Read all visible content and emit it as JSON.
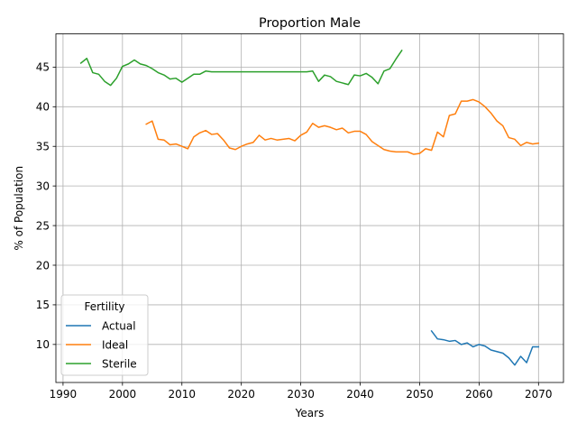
{
  "chart_data": {
    "type": "line",
    "title": "Proportion Male",
    "xlabel": "Years",
    "ylabel": "% of Population",
    "xlim": [
      1988.8,
      2074.2
    ],
    "ylim": [
      5.2,
      49.2
    ],
    "xticks": [
      1990,
      2000,
      2010,
      2020,
      2030,
      2040,
      2050,
      2060,
      2070
    ],
    "yticks": [
      10,
      15,
      20,
      25,
      30,
      35,
      40,
      45
    ],
    "grid": true,
    "legend": {
      "title": "Fertility",
      "placement": "lower-left",
      "entries": [
        "Actual",
        "Ideal",
        "Sterile"
      ]
    },
    "series": [
      {
        "name": "Actual",
        "color": "#1f77b4",
        "x": [
          2052,
          2053,
          2054,
          2055,
          2056,
          2057,
          2058,
          2059,
          2060,
          2061,
          2062,
          2063,
          2064,
          2065,
          2066,
          2067,
          2068,
          2069,
          2070
        ],
        "y": [
          11.7,
          10.7,
          10.6,
          10.4,
          10.5,
          10.0,
          10.2,
          9.7,
          10.0,
          9.8,
          9.3,
          9.1,
          8.9,
          8.3,
          7.4,
          8.5,
          7.7,
          9.7,
          9.7
        ]
      },
      {
        "name": "Ideal",
        "color": "#ff7f0e",
        "x": [
          2004,
          2005,
          2006,
          2007,
          2008,
          2009,
          2010,
          2011,
          2012,
          2013,
          2014,
          2015,
          2016,
          2017,
          2018,
          2019,
          2020,
          2021,
          2022,
          2023,
          2024,
          2025,
          2026,
          2027,
          2028,
          2029,
          2030,
          2031,
          2032,
          2033,
          2034,
          2035,
          2036,
          2037,
          2038,
          2039,
          2040,
          2041,
          2042,
          2043,
          2044,
          2045,
          2046,
          2047,
          2048,
          2049,
          2050,
          2051,
          2052,
          2053,
          2054,
          2055,
          2056,
          2057,
          2058,
          2059,
          2060,
          2061,
          2062,
          2063,
          2064,
          2065,
          2066,
          2067,
          2068,
          2069,
          2070
        ],
        "y": [
          37.8,
          38.2,
          35.9,
          35.8,
          35.2,
          35.3,
          35.0,
          34.7,
          36.2,
          36.7,
          37.0,
          36.5,
          36.6,
          35.8,
          34.8,
          34.6,
          35.0,
          35.3,
          35.5,
          36.4,
          35.8,
          36.0,
          35.8,
          35.9,
          36.0,
          35.7,
          36.4,
          36.8,
          37.9,
          37.4,
          37.6,
          37.4,
          37.1,
          37.3,
          36.7,
          36.9,
          36.9,
          36.5,
          35.6,
          35.1,
          34.6,
          34.4,
          34.3,
          34.3,
          34.3,
          34.0,
          34.1,
          34.7,
          34.5,
          36.8,
          36.2,
          38.9,
          39.1,
          40.7,
          40.7,
          40.9,
          40.6,
          40.0,
          39.2,
          38.2,
          37.6,
          36.1,
          35.9,
          35.1,
          35.5,
          35.3,
          35.4
        ]
      },
      {
        "name": "Sterile",
        "color": "#2ca02c",
        "x": [
          1993,
          1994,
          1995,
          1996,
          1997,
          1998,
          1999,
          2000,
          2001,
          2002,
          2003,
          2004,
          2005,
          2006,
          2007,
          2008,
          2009,
          2010,
          2011,
          2012,
          2013,
          2014,
          2015,
          2016,
          2017,
          2018,
          2019,
          2020,
          2021,
          2022,
          2023,
          2024,
          2025,
          2026,
          2027,
          2028,
          2029,
          2030,
          2031,
          2032,
          2033,
          2034,
          2035,
          2036,
          2037,
          2038,
          2039,
          2040,
          2041,
          2042,
          2043,
          2044,
          2045,
          2046,
          2047
        ],
        "y": [
          45.5,
          46.1,
          44.3,
          44.1,
          43.2,
          42.7,
          43.6,
          45.1,
          45.4,
          45.9,
          45.4,
          45.2,
          44.8,
          44.3,
          44.0,
          43.5,
          43.6,
          43.1,
          43.6,
          44.1,
          44.1,
          44.5,
          44.4,
          44.4,
          44.4,
          44.4,
          44.4,
          44.4,
          44.4,
          44.4,
          44.4,
          44.4,
          44.4,
          44.4,
          44.4,
          44.4,
          44.4,
          44.4,
          44.4,
          44.5,
          43.2,
          44.0,
          43.8,
          43.2,
          43.0,
          42.8,
          44.0,
          43.9,
          44.2,
          43.7,
          42.9,
          44.5,
          44.8,
          46.0,
          47.1
        ]
      }
    ]
  }
}
